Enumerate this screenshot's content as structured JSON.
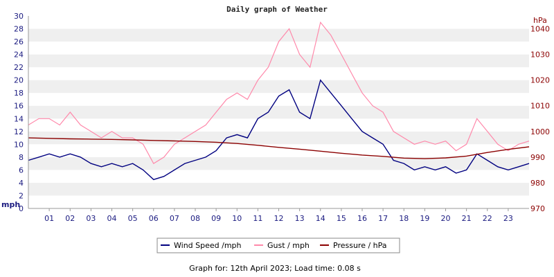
{
  "chart_data": {
    "type": "line",
    "title": "Daily graph of Weather",
    "ylabel_left": "mph",
    "ylabel_right": "hPa",
    "ylim_left": [
      0,
      30
    ],
    "yticks_left": [
      "0",
      "2",
      "4",
      "6",
      "8",
      "10",
      "12",
      "14",
      "16",
      "18",
      "20",
      "22",
      "24",
      "26",
      "28",
      "30"
    ],
    "ylim_right": [
      970,
      1045
    ],
    "yticks_right": [
      "970",
      "980",
      "990",
      "1000",
      "1010",
      "1020",
      "1030",
      "1040"
    ],
    "xlim": [
      0,
      24
    ],
    "xticks": [
      "01",
      "02",
      "03",
      "04",
      "05",
      "06",
      "07",
      "08",
      "09",
      "10",
      "11",
      "12",
      "13",
      "14",
      "15",
      "16",
      "17",
      "18",
      "19",
      "20",
      "21",
      "22",
      "23"
    ],
    "grid": "horizontal bands",
    "legend_position": "bottom",
    "series": [
      {
        "name": "Wind Speed /mph",
        "color": "#000080",
        "axis": "left",
        "x": [
          0,
          0.5,
          1,
          1.5,
          2,
          2.5,
          3,
          3.5,
          4,
          4.5,
          5,
          5.5,
          6,
          6.5,
          7,
          7.5,
          8,
          8.5,
          9,
          9.5,
          10,
          10.5,
          11,
          11.5,
          12,
          12.5,
          13,
          13.5,
          14,
          14.5,
          15,
          15.5,
          16,
          16.5,
          17,
          17.5,
          18,
          18.5,
          19,
          19.5,
          20,
          20.5,
          21,
          21.5,
          22,
          22.5,
          23,
          23.5,
          24
        ],
        "values": [
          7.5,
          8,
          8.5,
          8,
          8.5,
          8,
          7,
          6.5,
          7,
          6.5,
          7,
          6,
          4.5,
          5,
          6,
          7,
          7.5,
          8,
          9,
          11,
          11.5,
          11,
          14,
          15,
          17.5,
          18.5,
          15,
          14,
          20,
          18,
          16,
          14,
          12,
          11,
          10,
          7.5,
          7,
          6,
          6.5,
          6,
          6.5,
          5.5,
          6,
          8.5,
          7.5,
          6.5,
          6,
          6.5,
          7
        ]
      },
      {
        "name": "Gust / mph",
        "color": "#ff88aa",
        "axis": "left",
        "x": [
          0,
          0.5,
          1,
          1.5,
          2,
          2.5,
          3,
          3.5,
          4,
          4.5,
          5,
          5.5,
          6,
          6.5,
          7,
          7.5,
          8,
          8.5,
          9,
          9.5,
          10,
          10.5,
          11,
          11.5,
          12,
          12.5,
          13,
          13.5,
          14,
          14.5,
          15,
          15.5,
          16,
          16.5,
          17,
          17.5,
          18,
          18.5,
          19,
          19.5,
          20,
          20.5,
          21,
          21.5,
          22,
          22.5,
          23,
          23.5,
          24
        ],
        "values": [
          13,
          14,
          14,
          13,
          15,
          13,
          12,
          11,
          12,
          11,
          11,
          10,
          7,
          8,
          10,
          11,
          12,
          13,
          15,
          17,
          18,
          17,
          20,
          22,
          26,
          28,
          24,
          22,
          29,
          27,
          24,
          21,
          18,
          16,
          15,
          12,
          11,
          10,
          10.5,
          10,
          10.5,
          9,
          10,
          14,
          12,
          10,
          9,
          10,
          10.5
        ]
      },
      {
        "name": "Pressure / hPa",
        "color": "#8b0000",
        "axis": "right",
        "x": [
          0,
          1,
          2,
          3,
          4,
          5,
          6,
          7,
          8,
          9,
          10,
          11,
          12,
          13,
          14,
          15,
          16,
          17,
          18,
          19,
          20,
          21,
          22,
          23,
          24
        ],
        "values": [
          997.5,
          997.3,
          997.1,
          997,
          996.9,
          996.7,
          996.5,
          996.3,
          996.1,
          995.8,
          995.3,
          994.6,
          993.8,
          993.1,
          992.3,
          991.5,
          990.8,
          990.3,
          989.6,
          989.4,
          989.7,
          990.4,
          991.8,
          993,
          994
        ]
      }
    ]
  },
  "footer": {
    "text": "Graph for: 12th April 2023; Load time: 0.08 s"
  }
}
